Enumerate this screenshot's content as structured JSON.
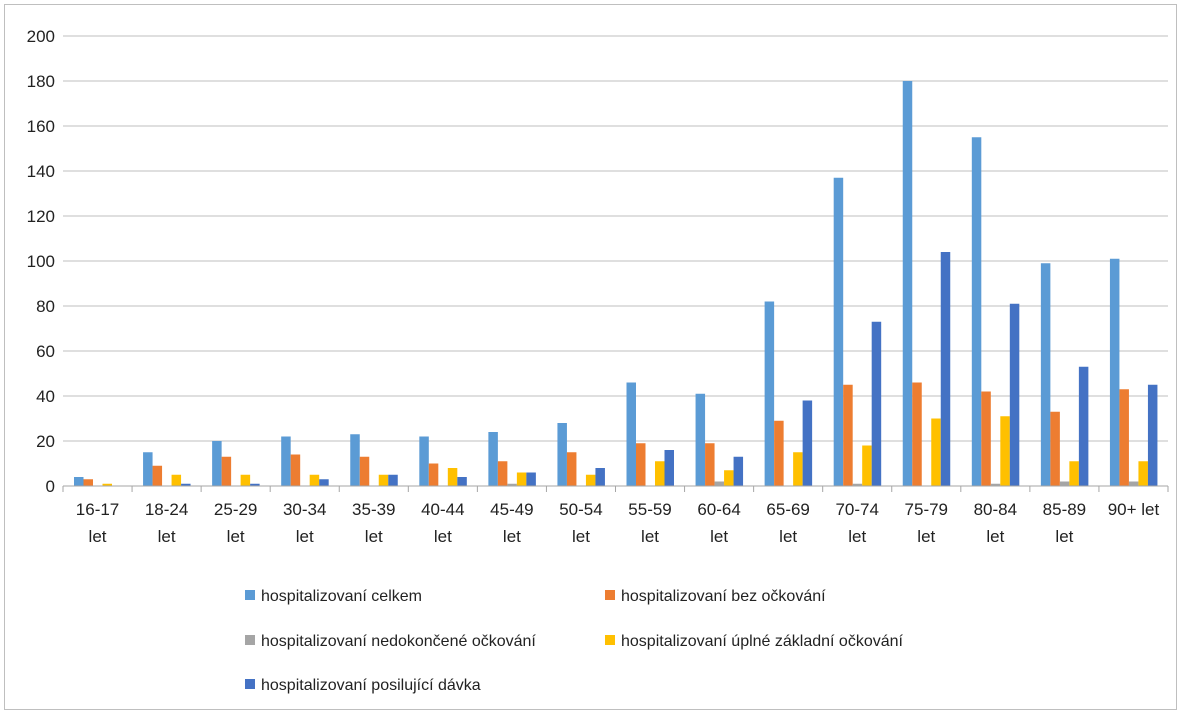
{
  "chart_data": {
    "type": "bar",
    "categories": [
      [
        "16-17",
        "let"
      ],
      [
        "18-24",
        "let"
      ],
      [
        "25-29",
        "let"
      ],
      [
        "30-34",
        "let"
      ],
      [
        "35-39",
        "let"
      ],
      [
        "40-44",
        "let"
      ],
      [
        "45-49",
        "let"
      ],
      [
        "50-54",
        "let"
      ],
      [
        "55-59",
        "let"
      ],
      [
        "60-64",
        "let"
      ],
      [
        "65-69",
        "let"
      ],
      [
        "70-74",
        "let"
      ],
      [
        "75-79",
        "let"
      ],
      [
        "80-84",
        "let"
      ],
      [
        "85-89",
        "let"
      ],
      [
        "90+ let"
      ]
    ],
    "series": [
      {
        "name": "hospitalizovaní celkem",
        "color": "#5b9bd5",
        "values": [
          4,
          15,
          20,
          22,
          23,
          22,
          24,
          28,
          46,
          41,
          82,
          137,
          180,
          155,
          99,
          101
        ]
      },
      {
        "name": "hospitalizovaní bez očkování",
        "color": "#ed7d31",
        "values": [
          3,
          9,
          13,
          14,
          13,
          10,
          11,
          15,
          19,
          19,
          29,
          45,
          46,
          42,
          33,
          43
        ]
      },
      {
        "name": "hospitalizovaní nedokončené očkování",
        "color": "#a5a5a5",
        "values": [
          0,
          0,
          0,
          0,
          0,
          0,
          1,
          0,
          0,
          2,
          0,
          1,
          0,
          1,
          2,
          2
        ]
      },
      {
        "name": "hospitalizovaní úplné základní očkování",
        "color": "#ffc000",
        "values": [
          1,
          5,
          5,
          5,
          5,
          8,
          6,
          5,
          11,
          7,
          15,
          18,
          30,
          31,
          11,
          11
        ]
      },
      {
        "name": "hospitalizovaní posilující dávka",
        "color": "#4472c4",
        "values": [
          0,
          1,
          1,
          3,
          5,
          4,
          6,
          8,
          16,
          13,
          38,
          73,
          104,
          81,
          53,
          45
        ]
      }
    ],
    "yticks": [
      "0",
      "20",
      "40",
      "60",
      "80",
      "100",
      "120",
      "140",
      "160",
      "180",
      "200"
    ],
    "ylim": [
      0,
      200
    ],
    "grid": true,
    "legend_position": "bottom",
    "gridline_color": "#bfbfbf",
    "axis_color": "#a6a6a6"
  }
}
